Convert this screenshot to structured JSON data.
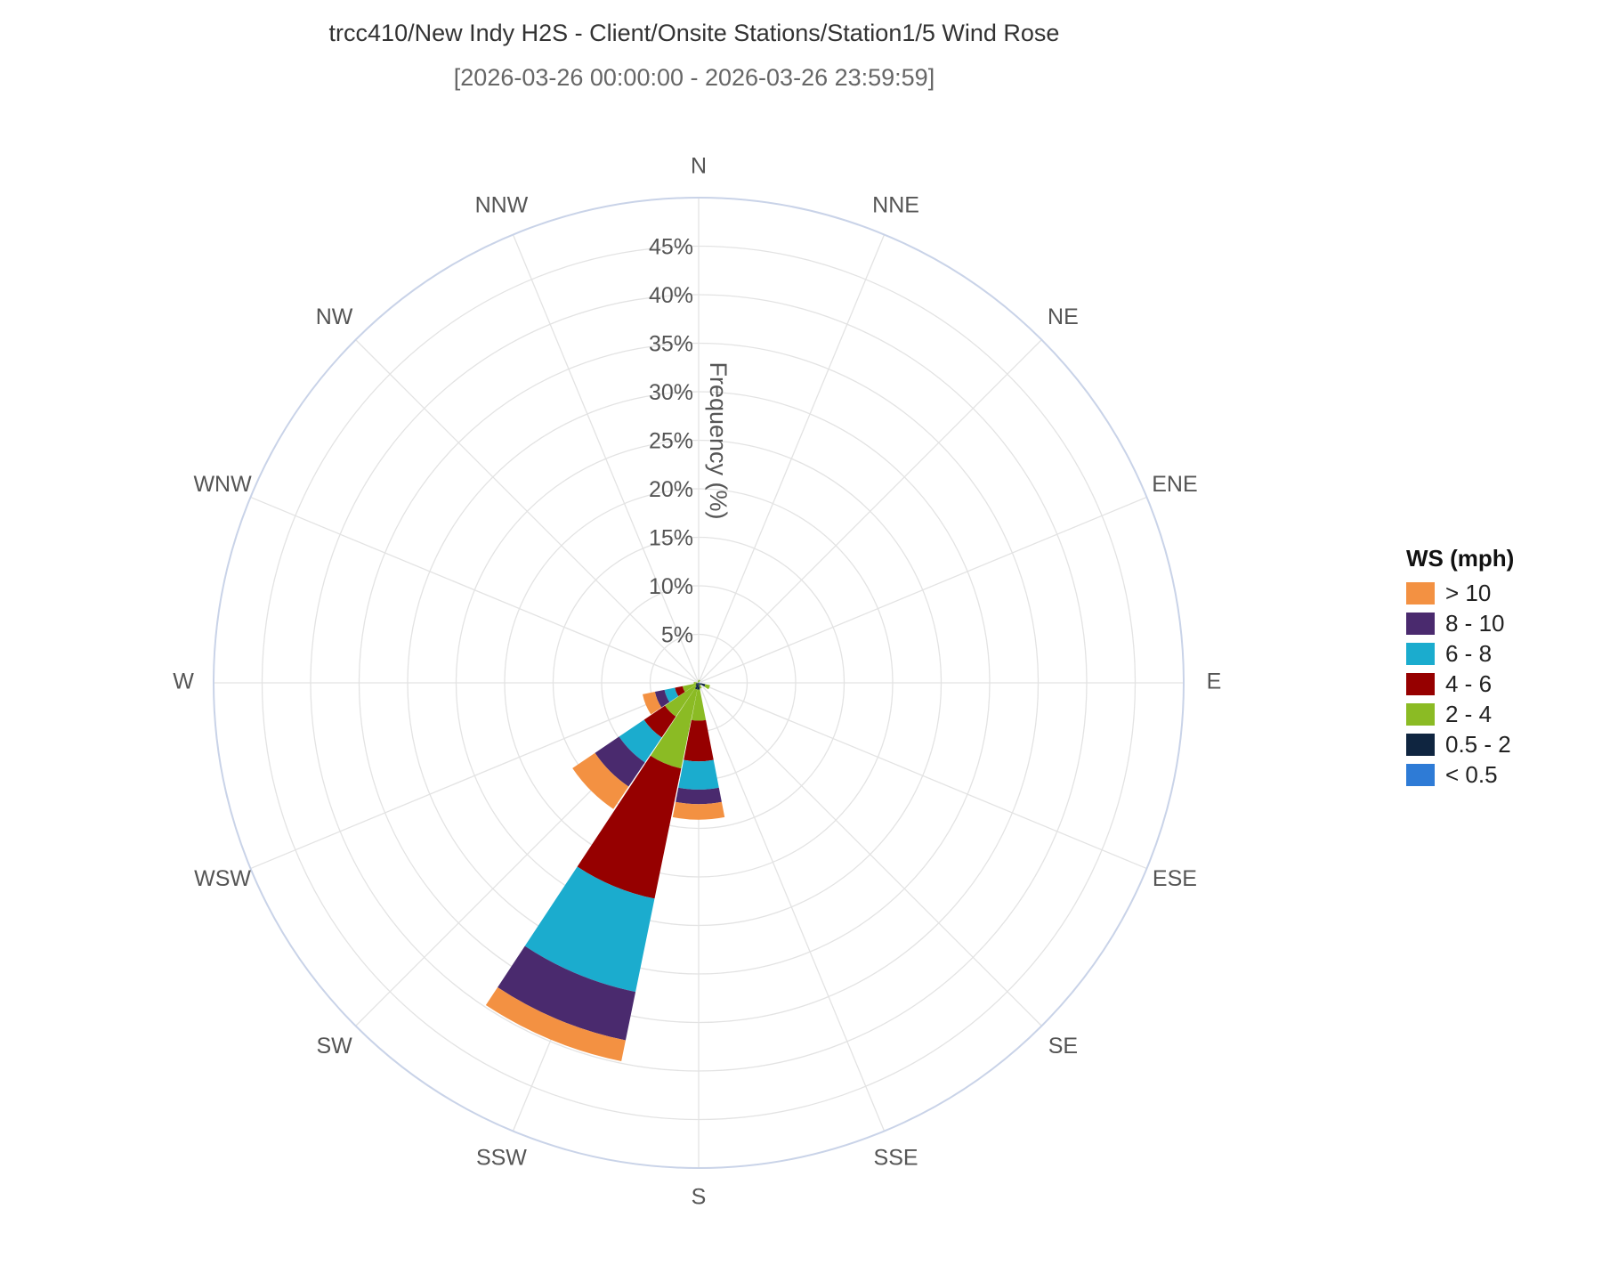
{
  "header": {
    "title": "trcc410/New Indy H2S - Client/Onsite Stations/Station1/5 Wind Rose",
    "subtitle": "[2026-03-26 00:00:00 - 2026-03-26 23:59:59]"
  },
  "chart_data": {
    "type": "barpolar",
    "title": "trcc410/New Indy H2S - Client/Onsite Stations/Station1/5 Wind Rose",
    "subtitle": "[2026-03-26 00:00:00 - 2026-03-26 23:59:59]",
    "radial_axis_label": "Frequency (%)",
    "radial_range": [
      0,
      50
    ],
    "radial_ticks": [
      "5%",
      "10%",
      "15%",
      "20%",
      "25%",
      "30%",
      "35%",
      "40%",
      "45%"
    ],
    "radial_tick_values": [
      5,
      10,
      15,
      20,
      25,
      30,
      35,
      40,
      45
    ],
    "directions": [
      "N",
      "NNE",
      "NE",
      "ENE",
      "E",
      "ESE",
      "SE",
      "SSE",
      "S",
      "SSW",
      "SW",
      "WSW",
      "W",
      "WNW",
      "NW",
      "NNW"
    ],
    "legend_title": "WS (mph)",
    "legend_placement": "right",
    "series": [
      {
        "name": "< 0.5",
        "color": "#2E7BD6",
        "values": [
          0,
          0,
          0,
          0,
          0,
          0.2,
          0,
          0,
          0.1,
          0,
          0,
          0,
          0,
          0,
          0,
          0
        ]
      },
      {
        "name": "0.5 - 2",
        "color": "#0F2540",
        "values": [
          0.1,
          0.1,
          0,
          0,
          0,
          0.5,
          0.3,
          0.2,
          0.6,
          0.7,
          0.4,
          0.3,
          0.1,
          0,
          0,
          0
        ]
      },
      {
        "name": "2 - 4",
        "color": "#8BBB24",
        "values": [
          0.2,
          0.2,
          0,
          0,
          0,
          0.5,
          0,
          0.4,
          3.2,
          8.3,
          3.8,
          1.4,
          0.4,
          0,
          0,
          0.2
        ]
      },
      {
        "name": "4 - 6",
        "color": "#960000",
        "values": [
          0,
          0,
          0,
          0,
          0,
          0,
          0,
          0,
          4.2,
          13.7,
          2.6,
          0.8,
          0,
          0,
          0,
          0
        ]
      },
      {
        "name": "6 - 8",
        "color": "#1BACCE",
        "values": [
          0,
          0,
          0,
          0,
          0,
          0,
          0,
          0,
          2.9,
          9.8,
          3.1,
          1.1,
          0,
          0,
          0,
          0
        ]
      },
      {
        "name": "8 - 10",
        "color": "#4A2A6E",
        "values": [
          0,
          0,
          0,
          0,
          0,
          0,
          0,
          0,
          1.5,
          5.1,
          3.0,
          1.0,
          0,
          0,
          0,
          0
        ]
      },
      {
        "name": "> 10",
        "color": "#F39142",
        "values": [
          0,
          0,
          0,
          0,
          0,
          0,
          0,
          0,
          1.6,
          2.2,
          2.8,
          1.3,
          0,
          0,
          0,
          0
        ]
      }
    ],
    "grid": true
  },
  "legend": {
    "title": "WS (mph)",
    "items": [
      {
        "label": "> 10",
        "color": "#F39142"
      },
      {
        "label": "8 - 10",
        "color": "#4A2A6E"
      },
      {
        "label": "6 - 8",
        "color": "#1BACCE"
      },
      {
        "label": "4 - 6",
        "color": "#960000"
      },
      {
        "label": "2 - 4",
        "color": "#8BBB24"
      },
      {
        "label": "0.5 - 2",
        "color": "#0F2540"
      },
      {
        "label": "< 0.5",
        "color": "#2E7BD6"
      }
    ]
  }
}
